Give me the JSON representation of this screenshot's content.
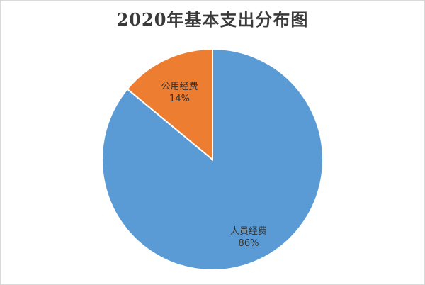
{
  "chart_data": {
    "type": "pie",
    "title": "2020年基本支出分布图",
    "slices": [
      {
        "label": "人员经费",
        "value": 86,
        "percent_label": "86%",
        "color": "#5b9bd5"
      },
      {
        "label": "公用经费",
        "value": 14,
        "percent_label": "14%",
        "color": "#ed7d31"
      }
    ],
    "start_angle_deg": 0,
    "direction": "clockwise",
    "slice_border_color": "#ffffff"
  }
}
